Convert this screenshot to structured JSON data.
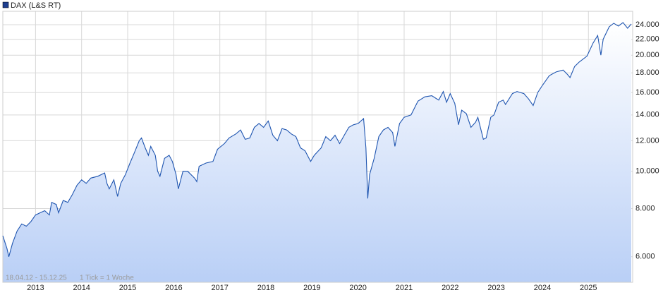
{
  "chart_data": {
    "type": "line",
    "legend_label": "DAX (L&S RT)",
    "date_range": "18.04.12 - 15.12.25",
    "note": "1 Tick = 1 Woche",
    "log_scale": true,
    "grid": true,
    "legend": "top-left",
    "xlim": [
      2012.29,
      2025.96
    ],
    "xticks": [
      2013,
      2014,
      2015,
      2016,
      2017,
      2018,
      2019,
      2020,
      2021,
      2022,
      2023,
      2024,
      2025
    ],
    "ylim": [
      5150,
      26000
    ],
    "yticks": [
      {
        "value": 6000,
        "label": "6.000"
      },
      {
        "value": 8000,
        "label": "8.000"
      },
      {
        "value": 10000,
        "label": "10.000"
      },
      {
        "value": 12000,
        "label": "12.000"
      },
      {
        "value": 14000,
        "label": "14.000"
      },
      {
        "value": 16000,
        "label": "16.000"
      },
      {
        "value": 18000,
        "label": "18.000"
      },
      {
        "value": 20000,
        "label": "20.000"
      },
      {
        "value": 22000,
        "label": "22.000"
      },
      {
        "value": 24000,
        "label": "24.000"
      }
    ],
    "x": [
      2012.29,
      2012.38,
      2012.42,
      2012.5,
      2012.6,
      2012.7,
      2012.8,
      2012.9,
      2013.0,
      2013.1,
      2013.2,
      2013.3,
      2013.35,
      2013.45,
      2013.5,
      2013.6,
      2013.7,
      2013.8,
      2013.9,
      2014.0,
      2014.1,
      2014.2,
      2014.35,
      2014.5,
      2014.55,
      2014.6,
      2014.7,
      2014.78,
      2014.85,
      2014.95,
      2015.05,
      2015.15,
      2015.25,
      2015.3,
      2015.38,
      2015.45,
      2015.5,
      2015.6,
      2015.65,
      2015.7,
      2015.8,
      2015.9,
      2015.97,
      2016.05,
      2016.1,
      2016.2,
      2016.3,
      2016.45,
      2016.5,
      2016.55,
      2016.7,
      2016.85,
      2016.95,
      2017.1,
      2017.2,
      2017.35,
      2017.45,
      2017.55,
      2017.65,
      2017.75,
      2017.85,
      2017.95,
      2018.05,
      2018.15,
      2018.25,
      2018.35,
      2018.45,
      2018.55,
      2018.65,
      2018.75,
      2018.85,
      2018.97,
      2019.05,
      2019.2,
      2019.3,
      2019.4,
      2019.5,
      2019.6,
      2019.7,
      2019.8,
      2019.9,
      2020.0,
      2020.12,
      2020.17,
      2020.21,
      2020.25,
      2020.35,
      2020.45,
      2020.55,
      2020.65,
      2020.75,
      2020.8,
      2020.9,
      2021.0,
      2021.15,
      2021.3,
      2021.45,
      2021.6,
      2021.75,
      2021.85,
      2021.92,
      2022.0,
      2022.1,
      2022.18,
      2022.25,
      2022.35,
      2022.45,
      2022.55,
      2022.6,
      2022.72,
      2022.78,
      2022.88,
      2022.95,
      2023.05,
      2023.15,
      2023.2,
      2023.35,
      2023.45,
      2023.6,
      2023.7,
      2023.8,
      2023.9,
      2024.0,
      2024.15,
      2024.3,
      2024.45,
      2024.55,
      2024.6,
      2024.7,
      2024.8,
      2024.97,
      2025.1,
      2025.2,
      2025.27,
      2025.32,
      2025.45,
      2025.55,
      2025.65,
      2025.75,
      2025.85,
      2025.93
    ],
    "series": [
      {
        "name": "DAX (L&S RT)",
        "color": "#1f55b0",
        "values": [
          6800,
          6300,
          6000,
          6500,
          7000,
          7300,
          7200,
          7400,
          7700,
          7800,
          7900,
          7700,
          8300,
          8200,
          7800,
          8400,
          8300,
          8700,
          9200,
          9500,
          9300,
          9600,
          9700,
          9900,
          9300,
          9000,
          9500,
          8600,
          9300,
          9800,
          10500,
          11200,
          12000,
          12200,
          11500,
          11000,
          11600,
          11000,
          10000,
          9700,
          10800,
          11000,
          10600,
          9800,
          9000,
          10000,
          10000,
          9600,
          9400,
          10300,
          10500,
          10600,
          11400,
          11800,
          12200,
          12500,
          12800,
          12100,
          12200,
          13000,
          13300,
          13000,
          13500,
          12400,
          12000,
          12900,
          12800,
          12500,
          12300,
          11500,
          11300,
          10600,
          11000,
          11500,
          12300,
          12000,
          12400,
          11800,
          12400,
          13000,
          13200,
          13300,
          13700,
          11500,
          8500,
          9800,
          10800,
          12300,
          12800,
          13000,
          12600,
          11600,
          13300,
          13800,
          14000,
          15200,
          15600,
          15700,
          15300,
          16100,
          15100,
          15900,
          15000,
          13200,
          14400,
          14100,
          13000,
          13400,
          13800,
          12100,
          12200,
          13800,
          14000,
          15100,
          15300,
          14900,
          15900,
          16100,
          15900,
          15400,
          14800,
          16000,
          16700,
          17700,
          18100,
          18300,
          17800,
          17500,
          18700,
          19200,
          19900,
          21500,
          22500,
          20000,
          22000,
          23700,
          24200,
          23800,
          24300,
          23500,
          24100
        ]
      }
    ]
  }
}
